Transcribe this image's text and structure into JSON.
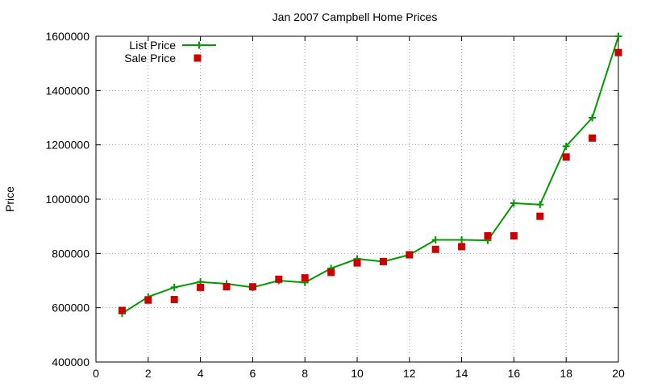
{
  "chart_data": {
    "type": "line",
    "title": "Jan 2007 Campbell Home Prices",
    "xlabel": "",
    "ylabel": "Price",
    "xlim": [
      0,
      20
    ],
    "ylim": [
      400000,
      1600000
    ],
    "xticks": [
      0,
      2,
      4,
      6,
      8,
      10,
      12,
      14,
      16,
      18,
      20
    ],
    "yticks": [
      400000,
      600000,
      800000,
      1000000,
      1200000,
      1400000,
      1600000
    ],
    "xtick_labels": [
      "0",
      "2",
      "4",
      "6",
      "8",
      "10",
      "12",
      "14",
      "16",
      "18",
      "20"
    ],
    "ytick_labels": [
      "400000",
      "600000",
      "800000",
      "1000000",
      "1200000",
      "1400000",
      "1600000"
    ],
    "grid": true,
    "legend_position": "top-left",
    "series": [
      {
        "name": "List Price",
        "style": "linespoints",
        "marker": "plus",
        "color": "#009900",
        "x": [
          1,
          2,
          3,
          4,
          5,
          6,
          7,
          8,
          9,
          10,
          11,
          12,
          13,
          14,
          15,
          16,
          17,
          18,
          19,
          20
        ],
        "y": [
          579000,
          640000,
          675000,
          695000,
          688000,
          675000,
          700000,
          693000,
          745000,
          780000,
          770000,
          795000,
          850000,
          850000,
          848000,
          985000,
          980000,
          1195000,
          1300000,
          1600000
        ]
      },
      {
        "name": "Sale Price",
        "style": "points",
        "marker": "square",
        "color": "#cc0000",
        "x": [
          1,
          2,
          3,
          4,
          5,
          6,
          7,
          8,
          9,
          10,
          11,
          12,
          13,
          14,
          15,
          16,
          17,
          18,
          19,
          20
        ],
        "y": [
          590000,
          628000,
          630000,
          675000,
          677000,
          677000,
          705000,
          710000,
          730000,
          765000,
          770000,
          795000,
          815000,
          825000,
          865000,
          865000,
          937000,
          1155000,
          1225000,
          1540000
        ]
      }
    ]
  }
}
